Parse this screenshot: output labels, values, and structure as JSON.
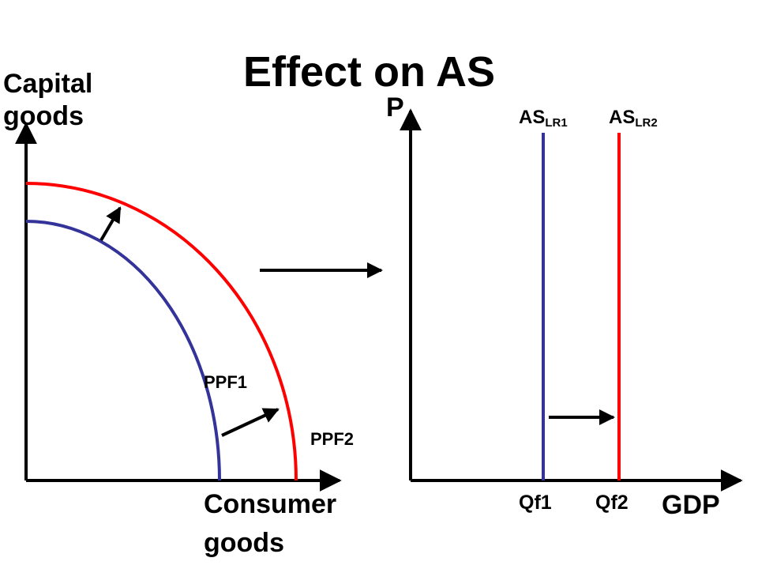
{
  "title": "Effect on AS",
  "left_diagram": {
    "y_axis_label": "Capital goods",
    "x_axis_label": "Consumer goods",
    "curves": [
      {
        "label": "PPF1",
        "color": "#333399"
      },
      {
        "label": "PPF2",
        "color": "#ff0000"
      }
    ]
  },
  "right_diagram": {
    "y_axis_label": "P",
    "x_axis_label": "GDP",
    "lines": [
      {
        "label_main": "AS",
        "label_sub": "LR1",
        "tick_label": "Qf1",
        "color": "#333399"
      },
      {
        "label_main": "AS",
        "label_sub": "LR2",
        "tick_label": "Qf2",
        "color": "#ff0000"
      }
    ]
  },
  "colors": {
    "axis": "#000000",
    "arrow": "#000000"
  }
}
